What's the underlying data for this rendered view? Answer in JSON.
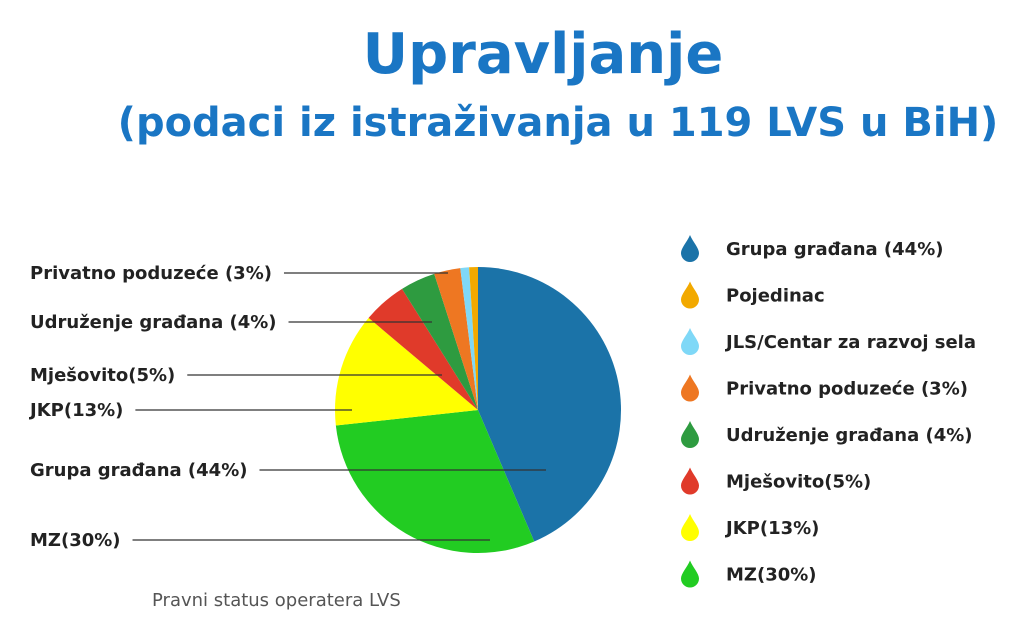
{
  "title": "Upravljanje",
  "subtitle": "(podaci iz istraživanja u 119 LVS u BiH)",
  "caption": "Pravni status operatera LVS",
  "chart_data": {
    "type": "pie",
    "legend_position": "right",
    "slices": [
      {
        "label": "Grupa građana (44%)",
        "value": 44,
        "color": "#1b73a8",
        "callout": "Grupa građana (44%)"
      },
      {
        "label": "MZ(30%)",
        "value": 30,
        "color": "#22cc22",
        "callout": "MZ(30%)"
      },
      {
        "label": "JKP(13%)",
        "value": 13,
        "color": "#ffff00",
        "callout": "JKP(13%)"
      },
      {
        "label": "Mješovito(5%)",
        "value": 5,
        "color": "#e03a2a",
        "callout": "Mješovito(5%)"
      },
      {
        "label": "Udruženje građana (4%)",
        "value": 4,
        "color": "#2e9b40",
        "callout": "Udruženje građana (4%)"
      },
      {
        "label": "Privatno poduzeće (3%)",
        "value": 3,
        "color": "#ee7722",
        "callout": "Privatno poduzeće (3%)"
      },
      {
        "label": "JLS/Centar za razvoj sela",
        "value": 1,
        "color": "#7fd8f7",
        "callout": ""
      },
      {
        "label": "Pojedinac",
        "value": 1,
        "color": "#f2a900",
        "callout": ""
      }
    ],
    "legend": [
      {
        "label": "Grupa građana (44%)",
        "color": "#1b73a8"
      },
      {
        "label": "Pojedinac",
        "color": "#f2a900"
      },
      {
        "label": "JLS/Centar za razvoj sela",
        "color": "#7fd8f7"
      },
      {
        "label": "Privatno poduzeće (3%)",
        "color": "#ee7722"
      },
      {
        "label": "Udruženje građana (4%)",
        "color": "#2e9b40"
      },
      {
        "label": "Mješovito(5%)",
        "color": "#e03a2a"
      },
      {
        "label": "JKP(13%)",
        "color": "#ffff00"
      },
      {
        "label": "MZ(30%)",
        "color": "#22cc22"
      }
    ]
  }
}
